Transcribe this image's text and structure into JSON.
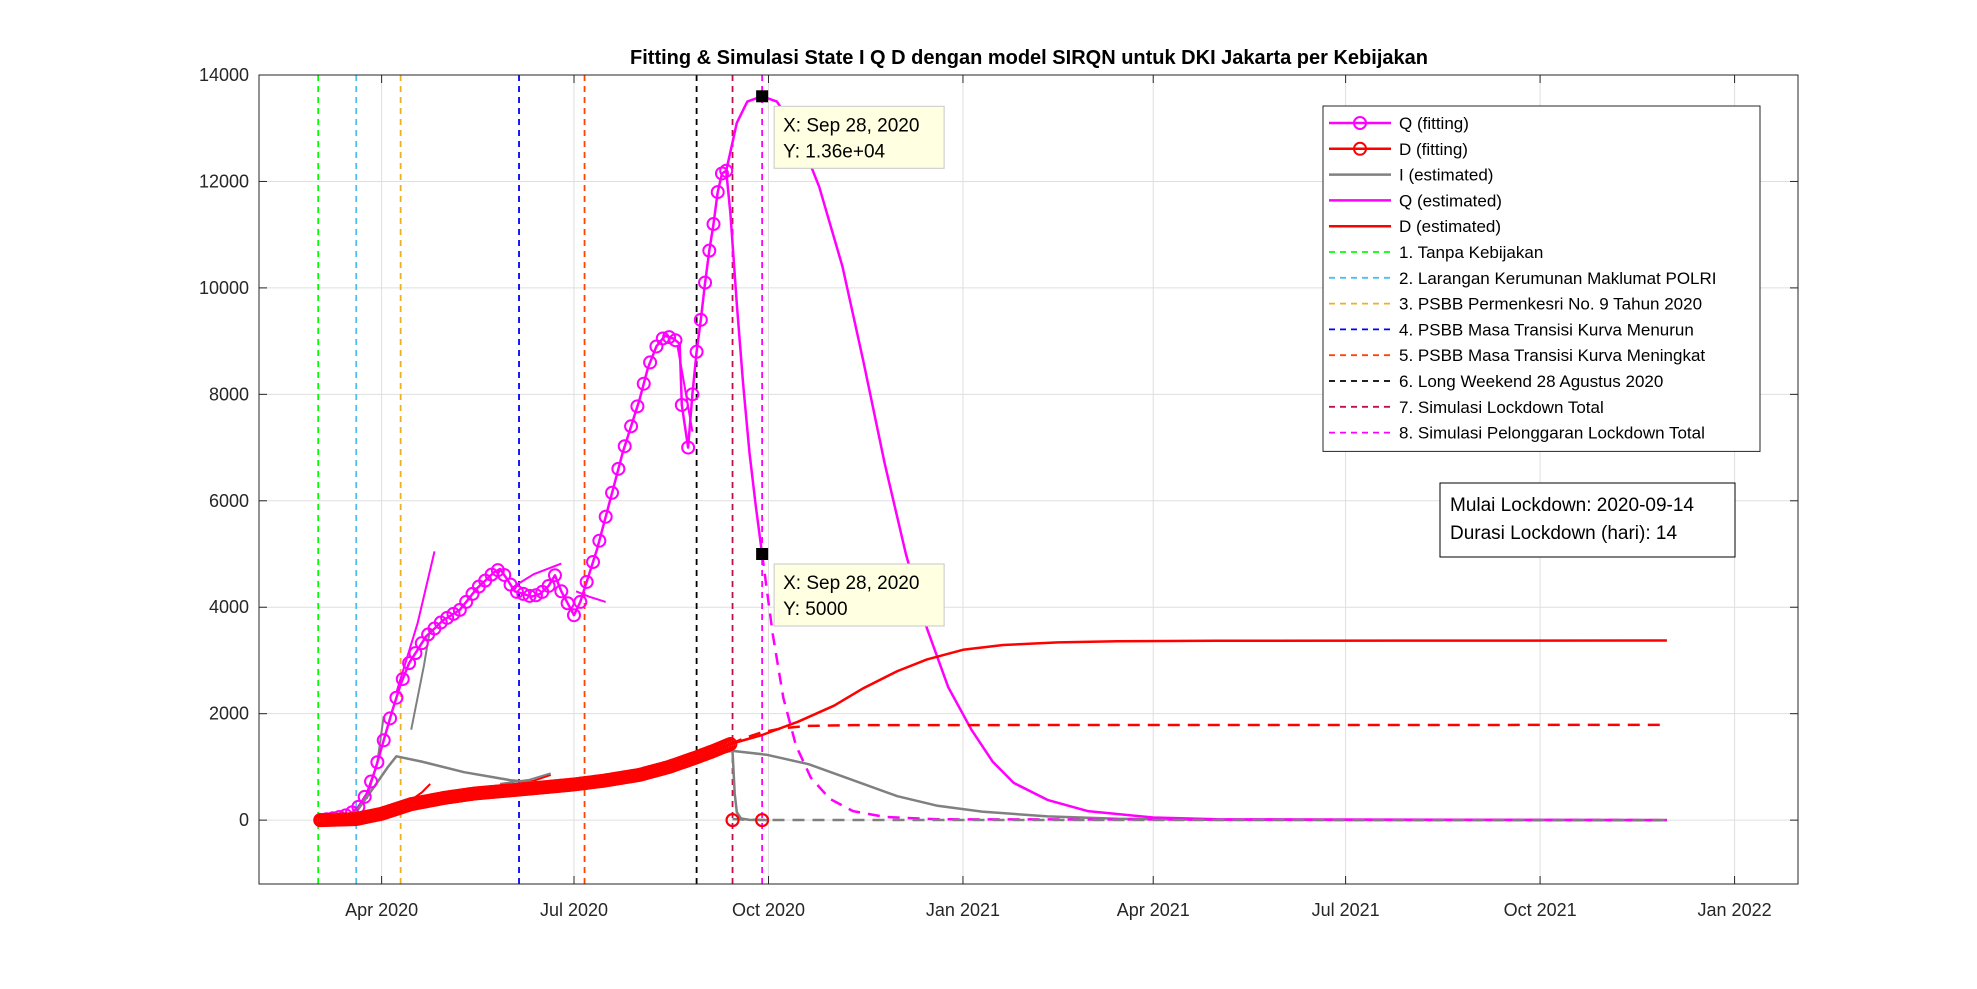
{
  "chart_data": {
    "type": "line",
    "title": "Fitting & Simulasi State  I Q D dengan model SIRQN untuk DKI Jakarta per Kebijakan",
    "xlabel": "",
    "ylabel": "",
    "x_domain": [
      "2020-02-03",
      "2022-01-31"
    ],
    "ylim": [
      -1200,
      14000
    ],
    "y_ticks": [
      0,
      2000,
      4000,
      6000,
      8000,
      10000,
      12000,
      14000
    ],
    "y_tick_labels": [
      "0",
      "2000",
      "4000",
      "6000",
      "8000",
      "10000",
      "12000",
      "14000"
    ],
    "x_ticks": [
      {
        "date": "2020-04-01",
        "label": "Apr 2020"
      },
      {
        "date": "2020-07-01",
        "label": "Jul 2020"
      },
      {
        "date": "2020-10-01",
        "label": "Oct 2020"
      },
      {
        "date": "2021-01-01",
        "label": "Jan 2021"
      },
      {
        "date": "2021-04-01",
        "label": "Apr 2021"
      },
      {
        "date": "2021-07-01",
        "label": "Jul 2021"
      },
      {
        "date": "2021-10-01",
        "label": "Oct 2021"
      },
      {
        "date": "2022-01-01",
        "label": "Jan 2022"
      }
    ],
    "grid": true,
    "legend_position": "top-right",
    "series": [
      {
        "name": "Q (fitting)",
        "color": "#ff00ff",
        "style": "line-marker-circle",
        "points": [
          [
            "2020-03-03",
            0
          ],
          [
            "2020-03-10",
            40
          ],
          [
            "2020-03-17",
            110
          ],
          [
            "2020-03-21",
            250
          ],
          [
            "2020-03-25",
            500
          ],
          [
            "2020-03-29",
            950
          ],
          [
            "2020-04-02",
            1500
          ],
          [
            "2020-04-06",
            2050
          ],
          [
            "2020-04-10",
            2550
          ],
          [
            "2020-04-14",
            2950
          ],
          [
            "2020-04-18",
            3200
          ],
          [
            "2020-04-22",
            3450
          ],
          [
            "2020-04-26",
            3600
          ],
          [
            "2020-04-30",
            3750
          ],
          [
            "2020-05-04",
            3850
          ],
          [
            "2020-05-08",
            3950
          ],
          [
            "2020-05-12",
            4150
          ],
          [
            "2020-05-16",
            4350
          ],
          [
            "2020-05-20",
            4500
          ],
          [
            "2020-05-24",
            4650
          ],
          [
            "2020-05-27",
            4720
          ],
          [
            "2020-05-30",
            4550
          ],
          [
            "2020-06-03",
            4300
          ],
          [
            "2020-06-07",
            4250
          ],
          [
            "2020-06-11",
            4200
          ],
          [
            "2020-06-15",
            4250
          ],
          [
            "2020-06-19",
            4400
          ],
          [
            "2020-06-22",
            4600
          ],
          [
            "2020-06-25",
            4300
          ],
          [
            "2020-06-29",
            4000
          ],
          [
            "2020-07-01",
            3850
          ],
          [
            "2020-07-04",
            4100
          ],
          [
            "2020-07-08",
            4600
          ],
          [
            "2020-07-12",
            5100
          ],
          [
            "2020-07-16",
            5700
          ],
          [
            "2020-07-20",
            6300
          ],
          [
            "2020-07-24",
            6900
          ],
          [
            "2020-07-28",
            7400
          ],
          [
            "2020-08-01",
            7900
          ],
          [
            "2020-08-05",
            8500
          ],
          [
            "2020-08-09",
            8900
          ],
          [
            "2020-08-13",
            9100
          ],
          [
            "2020-08-17",
            9050
          ],
          [
            "2020-08-20",
            8950
          ],
          [
            "2020-08-21",
            7800
          ],
          [
            "2020-08-24",
            7000
          ],
          [
            "2020-08-26",
            8000
          ],
          [
            "2020-08-28",
            8800
          ],
          [
            "2020-08-30",
            9400
          ],
          [
            "2020-09-01",
            10100
          ],
          [
            "2020-09-03",
            10700
          ],
          [
            "2020-09-05",
            11200
          ],
          [
            "2020-09-07",
            11800
          ],
          [
            "2020-09-09",
            12150
          ],
          [
            "2020-09-11",
            12200
          ]
        ],
        "marker_dates": [
          "2020-03-03",
          "2020-03-06",
          "2020-03-09",
          "2020-03-12",
          "2020-03-15",
          "2020-03-18",
          "2020-03-21",
          "2020-03-24",
          "2020-03-27",
          "2020-03-30",
          "2020-04-02",
          "2020-04-05",
          "2020-04-08",
          "2020-04-11",
          "2020-04-14",
          "2020-04-17",
          "2020-04-20",
          "2020-04-23",
          "2020-04-26",
          "2020-04-29",
          "2020-05-02",
          "2020-05-05",
          "2020-05-08",
          "2020-05-11",
          "2020-05-14",
          "2020-05-17",
          "2020-05-20",
          "2020-05-23",
          "2020-05-26",
          "2020-05-29",
          "2020-06-01",
          "2020-06-04",
          "2020-06-07",
          "2020-06-10",
          "2020-06-13",
          "2020-06-16",
          "2020-06-19",
          "2020-06-22",
          "2020-06-25",
          "2020-06-28",
          "2020-07-01",
          "2020-07-04",
          "2020-07-07",
          "2020-07-10",
          "2020-07-13",
          "2020-07-16",
          "2020-07-19",
          "2020-07-22",
          "2020-07-25",
          "2020-07-28",
          "2020-07-31",
          "2020-08-03",
          "2020-08-06",
          "2020-08-09",
          "2020-08-12",
          "2020-08-15",
          "2020-08-18",
          "2020-08-21",
          "2020-08-24",
          "2020-08-26",
          "2020-08-28",
          "2020-08-30",
          "2020-09-01",
          "2020-09-03",
          "2020-09-05",
          "2020-09-07",
          "2020-09-09",
          "2020-09-11"
        ],
        "extra_markers": [
          [
            "2020-09-14",
            0
          ],
          [
            "2020-09-28",
            0
          ]
        ]
      },
      {
        "name": "D (fitting)",
        "color": "#ff0000",
        "style": "line-marker-circle",
        "points": [
          [
            "2020-03-03",
            0
          ],
          [
            "2020-03-20",
            20
          ],
          [
            "2020-04-01",
            120
          ],
          [
            "2020-04-15",
            300
          ],
          [
            "2020-05-01",
            420
          ],
          [
            "2020-05-15",
            500
          ],
          [
            "2020-06-01",
            560
          ],
          [
            "2020-06-15",
            610
          ],
          [
            "2020-07-01",
            670
          ],
          [
            "2020-07-15",
            740
          ],
          [
            "2020-08-01",
            850
          ],
          [
            "2020-08-15",
            1000
          ],
          [
            "2020-08-28",
            1180
          ],
          [
            "2020-09-05",
            1300
          ],
          [
            "2020-09-13",
            1430
          ]
        ],
        "marker_every_days": 1,
        "extra_markers": [
          [
            "2020-09-14",
            0
          ],
          [
            "2020-09-28",
            0
          ]
        ]
      },
      {
        "name": "I (estimated)",
        "color": "#808080",
        "style": "line",
        "points": [
          [
            "2020-03-03",
            0
          ],
          [
            "2020-03-20",
            150
          ],
          [
            "2020-03-28",
            600
          ],
          [
            "2020-04-04",
            1000
          ],
          [
            "2020-04-08",
            1200
          ],
          [
            "2020-04-20",
            1100
          ],
          [
            "2020-05-10",
            900
          ],
          [
            "2020-06-01",
            750
          ],
          [
            "2020-06-20",
            680
          ],
          [
            "2020-07-05",
            700
          ],
          [
            "2020-07-20",
            800
          ],
          [
            "2020-08-05",
            950
          ],
          [
            "2020-08-20",
            1100
          ],
          [
            "2020-09-05",
            1250
          ],
          [
            "2020-09-14",
            1300
          ],
          [
            "2020-09-30",
            1230
          ],
          [
            "2020-10-20",
            1050
          ],
          [
            "2020-11-10",
            750
          ],
          [
            "2020-12-01",
            450
          ],
          [
            "2020-12-20",
            270
          ],
          [
            "2021-01-10",
            160
          ],
          [
            "2021-02-10",
            70
          ],
          [
            "2021-03-15",
            25
          ],
          [
            "2021-05-01",
            5
          ],
          [
            "2021-11-30",
            0
          ]
        ]
      },
      {
        "name": "Q (estimated)",
        "color": "#ff00ff",
        "style": "line",
        "points": [
          [
            "2020-09-11",
            12200
          ],
          [
            "2020-09-16",
            13100
          ],
          [
            "2020-09-21",
            13500
          ],
          [
            "2020-09-28",
            13600
          ],
          [
            "2020-10-05",
            13500
          ],
          [
            "2020-10-15",
            12900
          ],
          [
            "2020-10-25",
            11900
          ],
          [
            "2020-11-05",
            10400
          ],
          [
            "2020-11-15",
            8600
          ],
          [
            "2020-11-25",
            6700
          ],
          [
            "2020-12-05",
            5000
          ],
          [
            "2020-12-15",
            3600
          ],
          [
            "2020-12-25",
            2500
          ],
          [
            "2021-01-05",
            1700
          ],
          [
            "2021-01-15",
            1100
          ],
          [
            "2021-01-25",
            700
          ],
          [
            "2021-02-10",
            380
          ],
          [
            "2021-03-01",
            170
          ],
          [
            "2021-04-01",
            50
          ],
          [
            "2021-05-01",
            15
          ],
          [
            "2021-11-30",
            0
          ]
        ]
      },
      {
        "name": "D (estimated)",
        "color": "#ff0000",
        "style": "line",
        "points": [
          [
            "2020-09-13",
            1430
          ],
          [
            "2020-09-28",
            1600
          ],
          [
            "2020-10-15",
            1850
          ],
          [
            "2020-11-01",
            2150
          ],
          [
            "2020-11-15",
            2480
          ],
          [
            "2020-12-01",
            2800
          ],
          [
            "2020-12-15",
            3020
          ],
          [
            "2021-01-01",
            3200
          ],
          [
            "2021-01-20",
            3290
          ],
          [
            "2021-02-15",
            3340
          ],
          [
            "2021-03-15",
            3360
          ],
          [
            "2021-05-01",
            3370
          ],
          [
            "2021-11-30",
            3375
          ]
        ]
      },
      {
        "name": "Q (lockdown simulation)",
        "color": "#ff00ff",
        "style": "dashed",
        "in_legend": false,
        "points": [
          [
            "2020-09-28",
            5000
          ],
          [
            "2020-10-03",
            3500
          ],
          [
            "2020-10-08",
            2300
          ],
          [
            "2020-10-14",
            1400
          ],
          [
            "2020-10-21",
            800
          ],
          [
            "2020-10-30",
            400
          ],
          [
            "2020-11-10",
            170
          ],
          [
            "2020-11-25",
            60
          ],
          [
            "2020-12-20",
            15
          ],
          [
            "2021-11-30",
            0
          ]
        ]
      },
      {
        "name": "D (lockdown simulation)",
        "color": "#ff0000",
        "style": "dashed",
        "in_legend": false,
        "points": [
          [
            "2020-09-13",
            1430
          ],
          [
            "2020-09-21",
            1560
          ],
          [
            "2020-09-28",
            1650
          ],
          [
            "2020-10-08",
            1730
          ],
          [
            "2020-10-20",
            1770
          ],
          [
            "2020-11-10",
            1785
          ],
          [
            "2021-11-30",
            1790
          ]
        ]
      },
      {
        "name": "I (lockdown simulation)",
        "color": "#808080",
        "style": "dashed",
        "in_legend": false,
        "points": [
          [
            "2020-09-14",
            20
          ],
          [
            "2020-09-20",
            8
          ],
          [
            "2020-10-05",
            2
          ],
          [
            "2021-11-30",
            0
          ]
        ]
      },
      {
        "name": "I (lockdown drop)",
        "color": "#808080",
        "style": "line",
        "in_legend": false,
        "points": [
          [
            "2020-09-14",
            1300
          ],
          [
            "2020-09-15",
            500
          ],
          [
            "2020-09-16",
            150
          ],
          [
            "2020-09-18",
            30
          ],
          [
            "2020-09-22",
            5
          ],
          [
            "2020-10-01",
            0
          ]
        ]
      },
      {
        "name": "Q (lockdown drop)",
        "color": "#ff00ff",
        "style": "line",
        "in_legend": false,
        "points": [
          [
            "2020-09-11",
            12200
          ],
          [
            "2020-09-13",
            11400
          ],
          [
            "2020-09-16",
            9700
          ],
          [
            "2020-09-19",
            8200
          ],
          [
            "2020-09-22",
            6900
          ],
          [
            "2020-09-25",
            5900
          ],
          [
            "2020-09-28",
            5000
          ]
        ]
      }
    ],
    "fitting_segments": [
      {
        "color": "#ff00ff",
        "points": [
          [
            "2020-04-08",
            2400
          ],
          [
            "2020-04-18",
            3700
          ],
          [
            "2020-04-26",
            5050
          ]
        ]
      },
      {
        "color": "#808080",
        "points": [
          [
            "2020-03-25",
            400
          ],
          [
            "2020-03-30",
            1100
          ],
          [
            "2020-04-02",
            1950
          ]
        ]
      },
      {
        "color": "#808080",
        "points": [
          [
            "2020-04-15",
            1700
          ],
          [
            "2020-04-21",
            2900
          ],
          [
            "2020-04-24",
            3600
          ]
        ]
      },
      {
        "color": "#ff0000",
        "points": [
          [
            "2020-04-14",
            350
          ],
          [
            "2020-04-20",
            520
          ],
          [
            "2020-04-24",
            680
          ]
        ]
      },
      {
        "color": "#ff00ff",
        "points": [
          [
            "2020-06-03",
            4400
          ],
          [
            "2020-06-12",
            4620
          ],
          [
            "2020-06-25",
            4820
          ]
        ]
      },
      {
        "color": "#ff00ff",
        "points": [
          [
            "2020-07-02",
            4300
          ],
          [
            "2020-07-08",
            4200
          ],
          [
            "2020-07-16",
            4100
          ]
        ]
      },
      {
        "color": "#ff0000",
        "points": [
          [
            "2020-05-27",
            600
          ],
          [
            "2020-06-12",
            740
          ],
          [
            "2020-06-20",
            850
          ]
        ]
      },
      {
        "color": "#808080",
        "points": [
          [
            "2020-05-27",
            680
          ],
          [
            "2020-06-10",
            760
          ],
          [
            "2020-06-20",
            880
          ]
        ]
      },
      {
        "color": "#ff00ff",
        "points": [
          [
            "2020-08-19",
            8900
          ],
          [
            "2020-08-23",
            8000
          ],
          [
            "2020-08-26",
            7300
          ]
        ]
      }
    ],
    "policy_lines": [
      {
        "label": "1. Tanpa Kebijakan",
        "date": "2020-03-02",
        "color": "#00ff00"
      },
      {
        "label": "2. Larangan Kerumunan Maklumat POLRI",
        "date": "2020-03-20",
        "color": "#4dbeee"
      },
      {
        "label": "3. PSBB Permenkesri No. 9 Tahun 2020",
        "date": "2020-04-10",
        "color": "#edb120"
      },
      {
        "label": "4. PSBB Masa Transisi Kurva Menurun",
        "date": "2020-06-05",
        "color": "#0000ff"
      },
      {
        "label": "5. PSBB Masa Transisi Kurva Meningkat",
        "date": "2020-07-06",
        "color": "#ff4500"
      },
      {
        "label": "6. Long Weekend 28 Agustus 2020",
        "date": "2020-08-28",
        "color": "#000000"
      },
      {
        "label": "7. Simulasi Lockdown Total",
        "date": "2020-09-14",
        "color": "#c0104a"
      },
      {
        "label": "8. Simulasi Pelonggaran Lockdown Total",
        "date": "2020-09-28",
        "color": "#ff00ff"
      }
    ],
    "datatips": [
      {
        "date": "2020-09-28",
        "y": 13600,
        "line1": "X: Sep 28, 2020",
        "line2": "Y: 1.36e+04"
      },
      {
        "date": "2020-09-28",
        "y": 5000,
        "line1": "X: Sep 28, 2020",
        "line2": "Y: 5000"
      }
    ],
    "info_box": {
      "line1": "Mulai Lockdown: 2020-09-14",
      "line2": "Durasi Lockdown (hari): 14"
    }
  }
}
